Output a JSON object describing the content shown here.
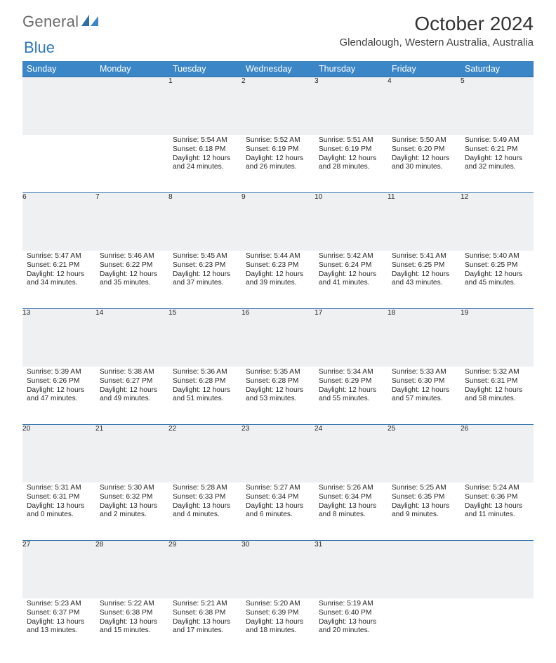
{
  "brand": {
    "general": "General",
    "blue": "Blue"
  },
  "title": "October 2024",
  "location": "Glendalough, Western Australia, Australia",
  "colors": {
    "header_bg": "#3b86c6",
    "header_text": "#ffffff",
    "day_row_bg": "#eef0f2",
    "day_row_border": "#2f6fa8",
    "body_text": "#262626",
    "logo_gray": "#6a6a6a",
    "logo_blue": "#2f77bb"
  },
  "weekdays": [
    "Sunday",
    "Monday",
    "Tuesday",
    "Wednesday",
    "Thursday",
    "Friday",
    "Saturday"
  ],
  "weeks": [
    [
      null,
      null,
      {
        "n": "1",
        "sr": "Sunrise: 5:54 AM",
        "ss": "Sunset: 6:18 PM",
        "d1": "Daylight: 12 hours",
        "d2": "and 24 minutes."
      },
      {
        "n": "2",
        "sr": "Sunrise: 5:52 AM",
        "ss": "Sunset: 6:19 PM",
        "d1": "Daylight: 12 hours",
        "d2": "and 26 minutes."
      },
      {
        "n": "3",
        "sr": "Sunrise: 5:51 AM",
        "ss": "Sunset: 6:19 PM",
        "d1": "Daylight: 12 hours",
        "d2": "and 28 minutes."
      },
      {
        "n": "4",
        "sr": "Sunrise: 5:50 AM",
        "ss": "Sunset: 6:20 PM",
        "d1": "Daylight: 12 hours",
        "d2": "and 30 minutes."
      },
      {
        "n": "5",
        "sr": "Sunrise: 5:49 AM",
        "ss": "Sunset: 6:21 PM",
        "d1": "Daylight: 12 hours",
        "d2": "and 32 minutes."
      }
    ],
    [
      {
        "n": "6",
        "sr": "Sunrise: 5:47 AM",
        "ss": "Sunset: 6:21 PM",
        "d1": "Daylight: 12 hours",
        "d2": "and 34 minutes."
      },
      {
        "n": "7",
        "sr": "Sunrise: 5:46 AM",
        "ss": "Sunset: 6:22 PM",
        "d1": "Daylight: 12 hours",
        "d2": "and 35 minutes."
      },
      {
        "n": "8",
        "sr": "Sunrise: 5:45 AM",
        "ss": "Sunset: 6:23 PM",
        "d1": "Daylight: 12 hours",
        "d2": "and 37 minutes."
      },
      {
        "n": "9",
        "sr": "Sunrise: 5:44 AM",
        "ss": "Sunset: 6:23 PM",
        "d1": "Daylight: 12 hours",
        "d2": "and 39 minutes."
      },
      {
        "n": "10",
        "sr": "Sunrise: 5:42 AM",
        "ss": "Sunset: 6:24 PM",
        "d1": "Daylight: 12 hours",
        "d2": "and 41 minutes."
      },
      {
        "n": "11",
        "sr": "Sunrise: 5:41 AM",
        "ss": "Sunset: 6:25 PM",
        "d1": "Daylight: 12 hours",
        "d2": "and 43 minutes."
      },
      {
        "n": "12",
        "sr": "Sunrise: 5:40 AM",
        "ss": "Sunset: 6:25 PM",
        "d1": "Daylight: 12 hours",
        "d2": "and 45 minutes."
      }
    ],
    [
      {
        "n": "13",
        "sr": "Sunrise: 5:39 AM",
        "ss": "Sunset: 6:26 PM",
        "d1": "Daylight: 12 hours",
        "d2": "and 47 minutes."
      },
      {
        "n": "14",
        "sr": "Sunrise: 5:38 AM",
        "ss": "Sunset: 6:27 PM",
        "d1": "Daylight: 12 hours",
        "d2": "and 49 minutes."
      },
      {
        "n": "15",
        "sr": "Sunrise: 5:36 AM",
        "ss": "Sunset: 6:28 PM",
        "d1": "Daylight: 12 hours",
        "d2": "and 51 minutes."
      },
      {
        "n": "16",
        "sr": "Sunrise: 5:35 AM",
        "ss": "Sunset: 6:28 PM",
        "d1": "Daylight: 12 hours",
        "d2": "and 53 minutes."
      },
      {
        "n": "17",
        "sr": "Sunrise: 5:34 AM",
        "ss": "Sunset: 6:29 PM",
        "d1": "Daylight: 12 hours",
        "d2": "and 55 minutes."
      },
      {
        "n": "18",
        "sr": "Sunrise: 5:33 AM",
        "ss": "Sunset: 6:30 PM",
        "d1": "Daylight: 12 hours",
        "d2": "and 57 minutes."
      },
      {
        "n": "19",
        "sr": "Sunrise: 5:32 AM",
        "ss": "Sunset: 6:31 PM",
        "d1": "Daylight: 12 hours",
        "d2": "and 58 minutes."
      }
    ],
    [
      {
        "n": "20",
        "sr": "Sunrise: 5:31 AM",
        "ss": "Sunset: 6:31 PM",
        "d1": "Daylight: 13 hours",
        "d2": "and 0 minutes."
      },
      {
        "n": "21",
        "sr": "Sunrise: 5:30 AM",
        "ss": "Sunset: 6:32 PM",
        "d1": "Daylight: 13 hours",
        "d2": "and 2 minutes."
      },
      {
        "n": "22",
        "sr": "Sunrise: 5:28 AM",
        "ss": "Sunset: 6:33 PM",
        "d1": "Daylight: 13 hours",
        "d2": "and 4 minutes."
      },
      {
        "n": "23",
        "sr": "Sunrise: 5:27 AM",
        "ss": "Sunset: 6:34 PM",
        "d1": "Daylight: 13 hours",
        "d2": "and 6 minutes."
      },
      {
        "n": "24",
        "sr": "Sunrise: 5:26 AM",
        "ss": "Sunset: 6:34 PM",
        "d1": "Daylight: 13 hours",
        "d2": "and 8 minutes."
      },
      {
        "n": "25",
        "sr": "Sunrise: 5:25 AM",
        "ss": "Sunset: 6:35 PM",
        "d1": "Daylight: 13 hours",
        "d2": "and 9 minutes."
      },
      {
        "n": "26",
        "sr": "Sunrise: 5:24 AM",
        "ss": "Sunset: 6:36 PM",
        "d1": "Daylight: 13 hours",
        "d2": "and 11 minutes."
      }
    ],
    [
      {
        "n": "27",
        "sr": "Sunrise: 5:23 AM",
        "ss": "Sunset: 6:37 PM",
        "d1": "Daylight: 13 hours",
        "d2": "and 13 minutes."
      },
      {
        "n": "28",
        "sr": "Sunrise: 5:22 AM",
        "ss": "Sunset: 6:38 PM",
        "d1": "Daylight: 13 hours",
        "d2": "and 15 minutes."
      },
      {
        "n": "29",
        "sr": "Sunrise: 5:21 AM",
        "ss": "Sunset: 6:38 PM",
        "d1": "Daylight: 13 hours",
        "d2": "and 17 minutes."
      },
      {
        "n": "30",
        "sr": "Sunrise: 5:20 AM",
        "ss": "Sunset: 6:39 PM",
        "d1": "Daylight: 13 hours",
        "d2": "and 18 minutes."
      },
      {
        "n": "31",
        "sr": "Sunrise: 5:19 AM",
        "ss": "Sunset: 6:40 PM",
        "d1": "Daylight: 13 hours",
        "d2": "and 20 minutes."
      },
      null,
      null
    ]
  ]
}
